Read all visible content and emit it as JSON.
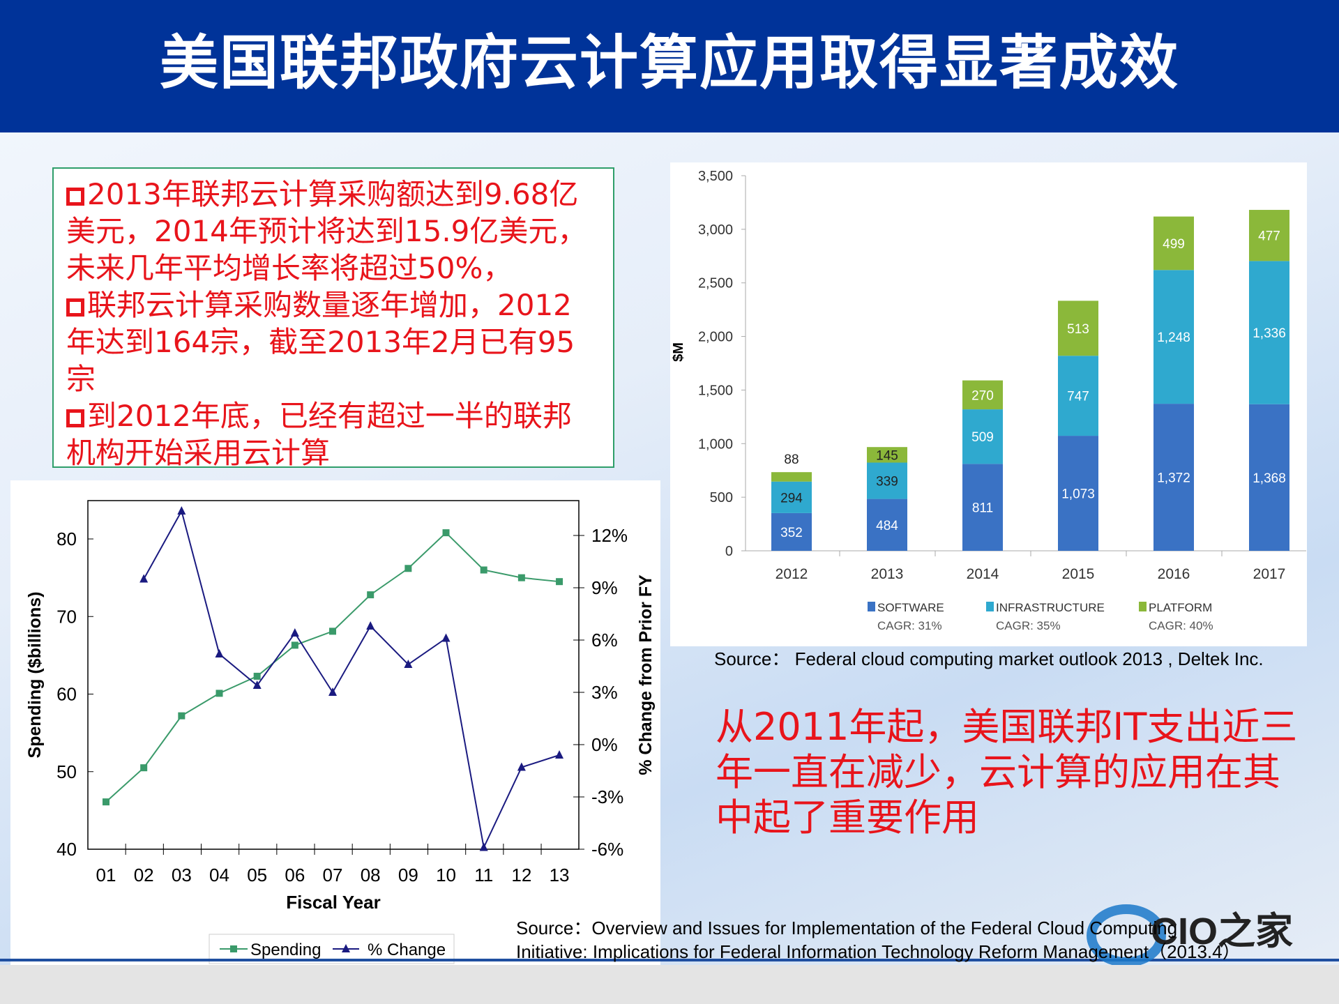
{
  "header": {
    "title": "美国联邦政府云计算应用取得显著成效"
  },
  "textbox": {
    "items": [
      "2013年联邦云计算采购额达到9.68亿美元，2014年预计将达到15.9亿美元，未来几年平均增长率将超过50%，",
      "联邦云计算采购数量逐年增加，2012年达到164宗，截至2013年2月已有95宗",
      "到2012年底，已经有超过一半的联邦机构开始采用云计算"
    ]
  },
  "conclusion": "从2011年起，美国联邦IT支出近三年一直在减少，云计算的应用在其中起了重要作用",
  "source_bar": "Source：  Federal cloud computing market outlook 2013 , Deltek Inc.",
  "source_line": [
    "Source：Overview and Issues for Implementation of the Federal Cloud Computing",
    "Initiative: Implications for Federal Information Technology Reform Management（2013.4）"
  ],
  "logo": "CIO之家",
  "colors": {
    "header": "#003399",
    "accent_red": "#e8141b",
    "software": "#3a72c4",
    "infrastructure": "#2fa9cf",
    "platform": "#8bb83a",
    "spending": "#3a9a6a",
    "change": "#1a1a80"
  },
  "chart_data": [
    {
      "type": "line",
      "xlabel": "Fiscal Year",
      "ylabel": "Spending ($billions)",
      "y2label": "% Change from Prior FY",
      "categories": [
        "01",
        "02",
        "03",
        "04",
        "05",
        "06",
        "07",
        "08",
        "09",
        "10",
        "11",
        "12",
        "13"
      ],
      "ylim": [
        40,
        85
      ],
      "yticks": [
        "40",
        "50",
        "60",
        "70",
        "80"
      ],
      "y2ticks": [
        "-6%",
        "-3%",
        "0%",
        "3%",
        "6%",
        "9%",
        "12%"
      ],
      "legend": "bottom",
      "series": [
        {
          "name": "Spending",
          "axis": "left",
          "values": [
            46.1,
            50.5,
            57.2,
            60.1,
            62.3,
            66.3,
            68.1,
            72.8,
            76.2,
            80.8,
            76.0,
            75.0,
            74.5
          ]
        },
        {
          "name": "% Change",
          "axis": "right",
          "values": [
            null,
            9.5,
            13.4,
            5.2,
            3.4,
            6.4,
            3.0,
            6.8,
            4.6,
            6.1,
            -5.9,
            -1.3,
            -0.6
          ]
        }
      ]
    },
    {
      "type": "bar",
      "stacked": true,
      "ylabel": "$M",
      "ylim": [
        0,
        3500
      ],
      "yticks": [
        "0",
        "500",
        "1,000",
        "1,500",
        "2,000",
        "2,500",
        "3,000",
        "3,500"
      ],
      "categories": [
        "2012",
        "2013",
        "2014",
        "2015",
        "2016",
        "2017"
      ],
      "series": [
        {
          "name": "SOFTWARE",
          "note": "CAGR: 31%",
          "values": [
            352,
            484,
            811,
            1073,
            1372,
            1368
          ]
        },
        {
          "name": "INFRASTRUCTURE",
          "note": "CAGR: 35%",
          "values": [
            294,
            339,
            509,
            747,
            1248,
            1336
          ]
        },
        {
          "name": "PLATFORM",
          "note": "CAGR: 40%",
          "values": [
            88,
            145,
            270,
            513,
            499,
            477
          ]
        }
      ],
      "legend": "bottom"
    }
  ]
}
